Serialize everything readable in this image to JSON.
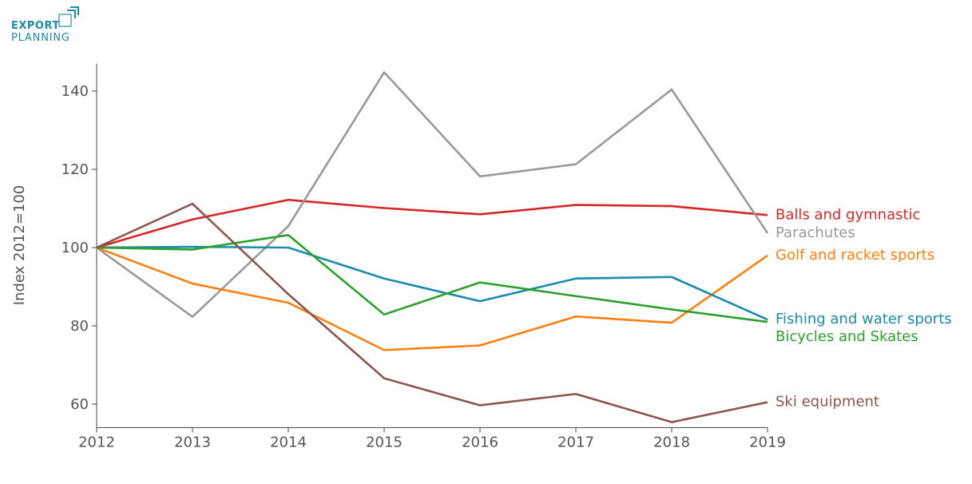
{
  "logo": {
    "line1": "EXPORT",
    "line2": "PLANNING",
    "color": "#1e8aa8"
  },
  "chart_data": {
    "type": "line",
    "title": "",
    "xlabel": "",
    "ylabel": "Index 2012=100",
    "x": [
      2012,
      2013,
      2014,
      2015,
      2016,
      2017,
      2018,
      2019
    ],
    "xlim": [
      2012,
      2019
    ],
    "ylim": [
      54,
      147
    ],
    "yticks": [
      60,
      80,
      100,
      120,
      140
    ],
    "grid": false,
    "legend": "direct labels at line ends (right)",
    "series": [
      {
        "name": "Balls and gymnastic",
        "color": "#d62728",
        "values": [
          100,
          107.2,
          112.2,
          110.1,
          108.5,
          110.9,
          110.6,
          108.3
        ]
      },
      {
        "name": "Parachutes",
        "color": "#999999",
        "values": [
          100,
          82.3,
          105.5,
          144.8,
          118.2,
          121.3,
          140.4,
          103.7
        ]
      },
      {
        "name": "Golf and racket sports",
        "color": "#ff7f0e",
        "values": [
          100,
          90.8,
          85.9,
          73.8,
          75.0,
          82.4,
          80.8,
          98.0
        ]
      },
      {
        "name": "Fishing and water sports",
        "color": "#1a8aad",
        "values": [
          100,
          100.2,
          100.0,
          92.1,
          86.3,
          92.1,
          92.5,
          81.6
        ]
      },
      {
        "name": "Bicycles and Skates",
        "color": "#2ca02c",
        "values": [
          100,
          99.5,
          103.2,
          82.9,
          91.1,
          87.6,
          84.2,
          81.0
        ]
      },
      {
        "name": "Ski equipment",
        "color": "#8c564b",
        "values": [
          100,
          111.2,
          88.1,
          66.6,
          59.7,
          62.6,
          55.4,
          60.5
        ]
      }
    ]
  }
}
